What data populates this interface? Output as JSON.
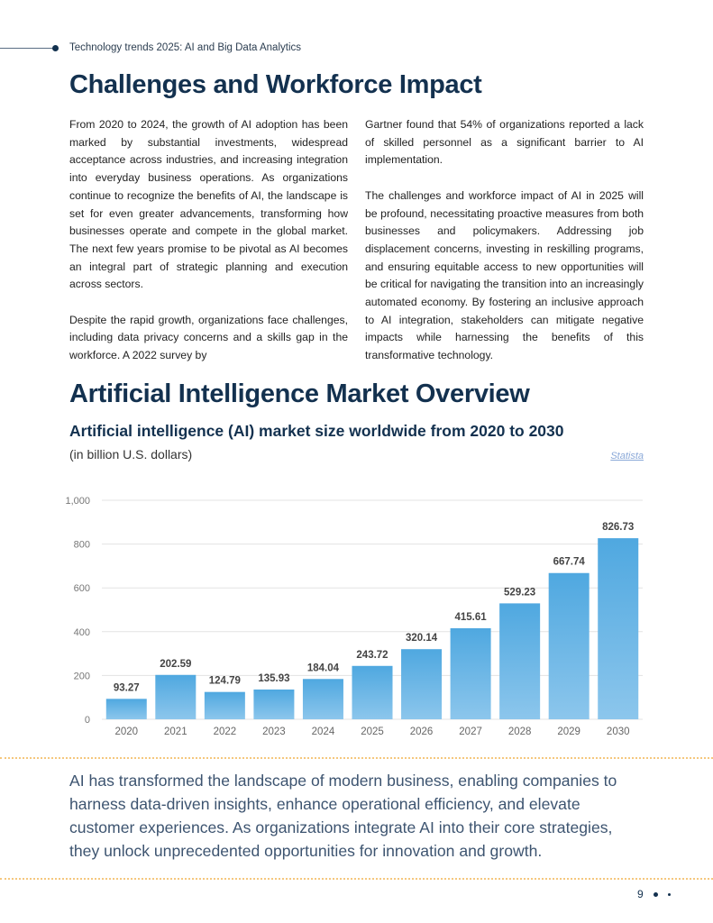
{
  "header": {
    "running_title": "Technology trends 2025: AI and Big Data Analytics"
  },
  "section1": {
    "title": "Challenges and Workforce Impact",
    "left_paragraphs": [
      "From 2020 to 2024, the growth of AI adoption has been marked by substantial investments, widespread acceptance across industries, and increasing integration into everyday business operations. As organizations continue to recognize the benefits of AI, the landscape is set for even greater advancements, transforming how businesses operate and compete in the global market. The next few years promise to be pivotal as AI becomes an integral part of strategic planning and execution across sectors.",
      "Despite the rapid growth, organizations face challenges, including data privacy concerns and a skills gap in the workforce. A 2022 survey by"
    ],
    "right_paragraphs": [
      "Gartner found that 54% of organizations reported a lack of skilled personnel as a significant barrier to AI implementation.",
      "The challenges and workforce impact of AI in 2025 will be profound, necessitating proactive measures from both businesses and policymakers. Addressing job displacement concerns, investing in reskilling programs, and ensuring equitable access to new opportunities will be critical for navigating the transition into an increasingly automated economy. By fostering an inclusive approach to AI integration, stakeholders can mitigate negative impacts while harnessing the benefits of this transformative technology."
    ]
  },
  "section2": {
    "title": "Artificial Intelligence Market Overview",
    "source_link": "Statista"
  },
  "chart_data": {
    "type": "bar",
    "title": "Artificial intelligence (AI) market size worldwide from 2020 to 2030",
    "subtitle": "(in billion U.S. dollars)",
    "categories": [
      "2020",
      "2021",
      "2022",
      "2023",
      "2024",
      "2025",
      "2026",
      "2027",
      "2028",
      "2029",
      "2030"
    ],
    "values": [
      93.27,
      202.59,
      124.79,
      135.93,
      184.04,
      243.72,
      320.14,
      415.61,
      529.23,
      667.74,
      826.73
    ],
    "data_labels": [
      "93.27",
      "202.59",
      "124.79",
      "135.93",
      "184.04",
      "243.72",
      "320.14",
      "415.61",
      "529.23",
      "667.74",
      "826.73"
    ],
    "ylim": [
      0,
      1000
    ],
    "yticks": [
      0,
      200,
      400,
      600,
      800,
      1000
    ],
    "ytick_labels": [
      "0",
      "200",
      "400",
      "600",
      "800",
      "1,000"
    ],
    "grid": true,
    "bar_color_top": "#4fa8e0",
    "bar_color_bottom": "#8cc6ec"
  },
  "callout": {
    "text": "AI has transformed the landscape of modern business, enabling companies to harness data-driven insights, enhance operational efficiency, and elevate customer experiences. As organizations integrate AI into their core strategies, they unlock unprecedented opportunities for innovation and growth."
  },
  "footer": {
    "page_number": "9"
  }
}
